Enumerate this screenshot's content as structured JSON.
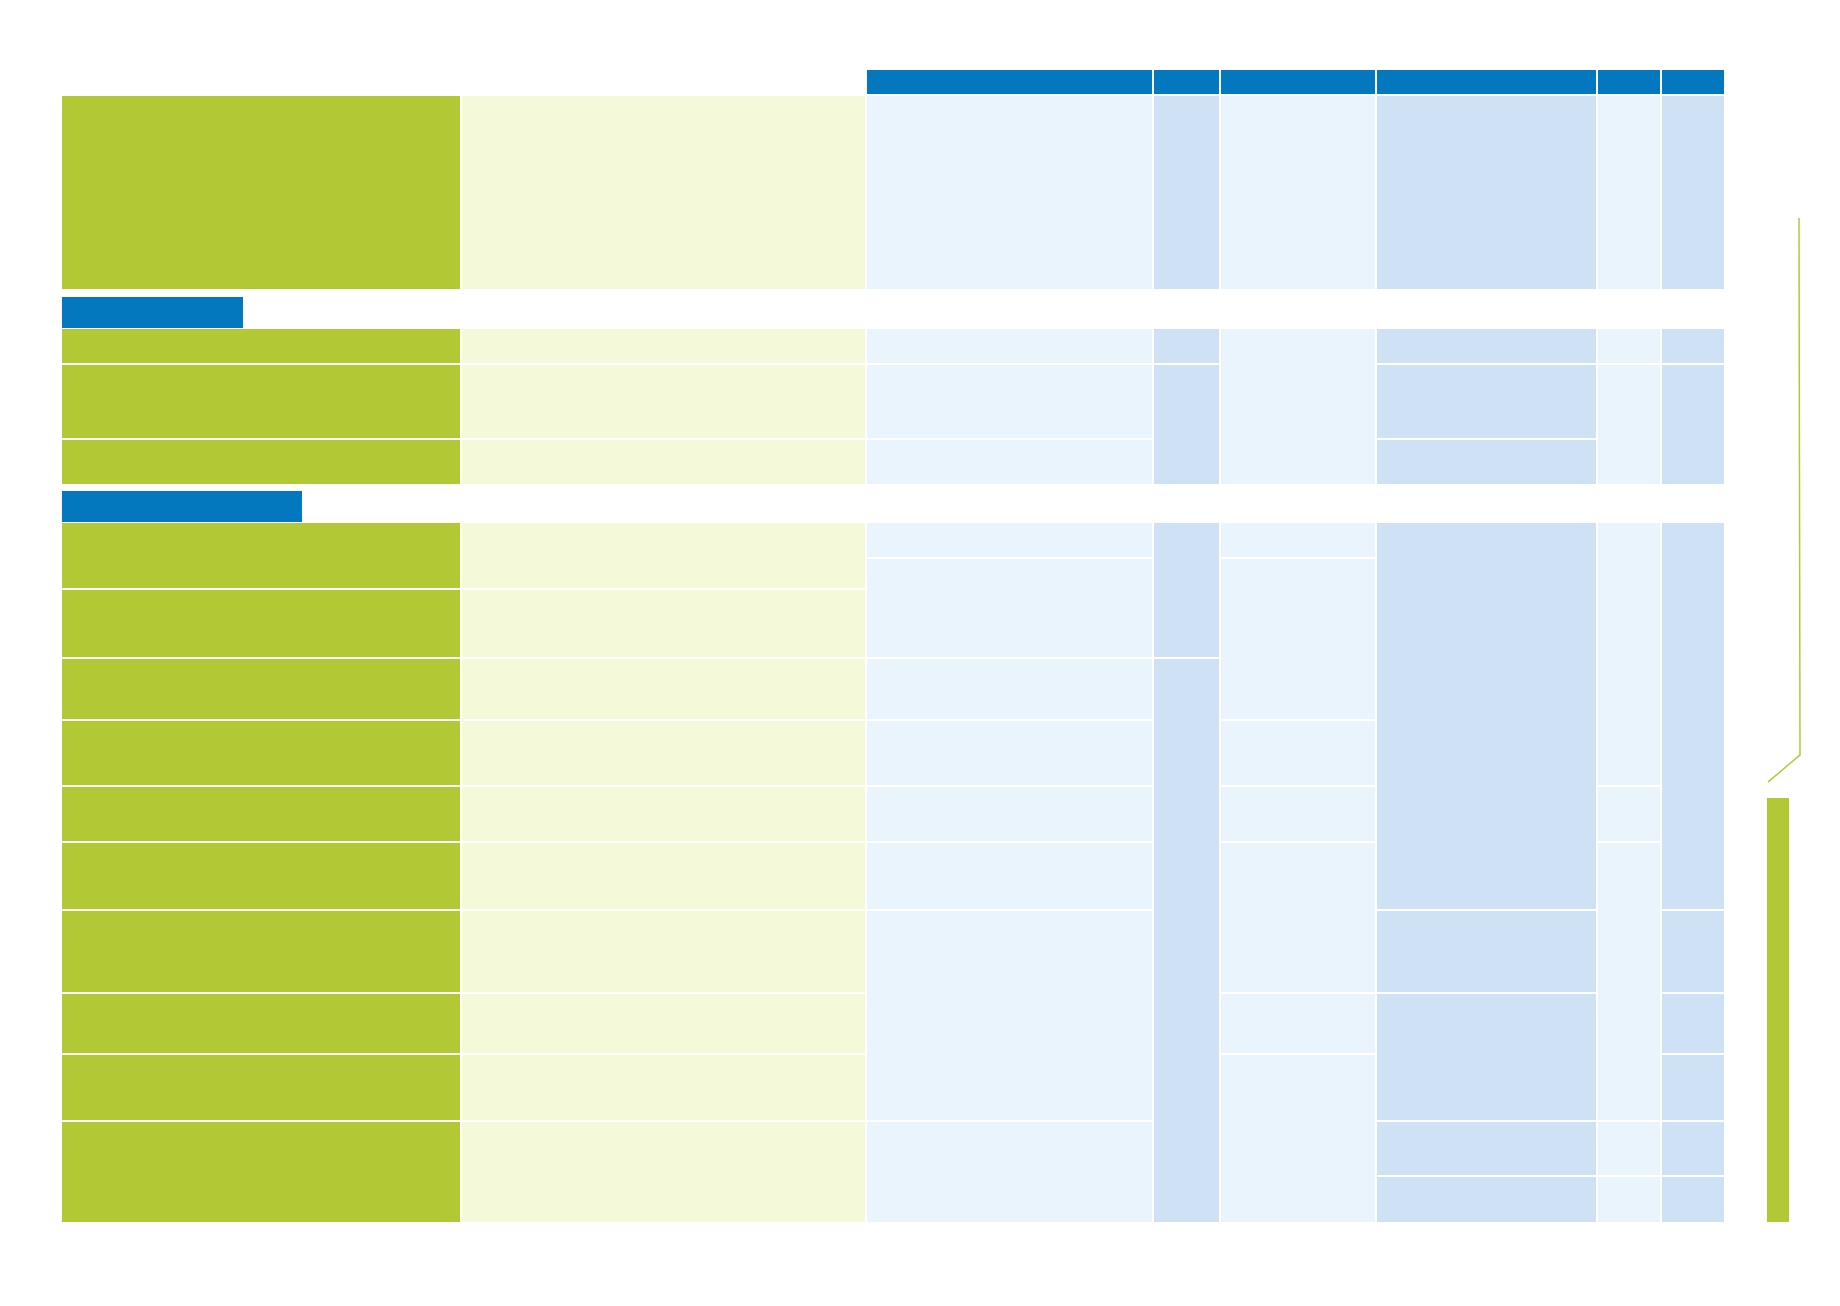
{
  "colors": {
    "header_blue": "#0478bf",
    "green": "#b2c935",
    "light_green": "#f4f9d9",
    "light_blue": "#eaf4fc",
    "mid_blue": "#cfe1f5",
    "accent_line": "#b2c935"
  },
  "header": {
    "columns": [
      {
        "name": "header-col-1",
        "label": ""
      },
      {
        "name": "header-col-2",
        "label": ""
      },
      {
        "name": "header-col-3",
        "label": ""
      },
      {
        "name": "header-col-4",
        "label": ""
      },
      {
        "name": "header-col-5",
        "label": ""
      },
      {
        "name": "header-col-6",
        "label": ""
      }
    ]
  },
  "sections": [
    {
      "name": "section-tab-1",
      "label": ""
    },
    {
      "name": "section-tab-2",
      "label": ""
    }
  ],
  "table": {
    "rows": []
  }
}
